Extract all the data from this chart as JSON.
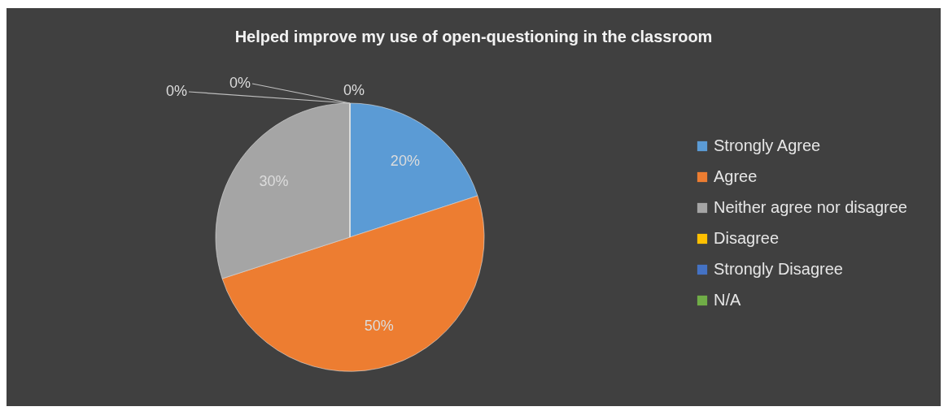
{
  "chart_data": {
    "type": "pie",
    "title": "Helped improve my use of open-questioning in the classroom",
    "categories": [
      "Strongly Agree",
      "Agree",
      "Neither agree nor disagree",
      "Disagree",
      "Strongly Disagree",
      "N/A"
    ],
    "values": [
      20,
      50,
      30,
      0,
      0,
      0
    ],
    "colors": [
      "#5b9bd5",
      "#ed7d31",
      "#a5a5a5",
      "#ffc000",
      "#4472c4",
      "#70ad47"
    ],
    "value_labels": [
      "20%",
      "50%",
      "30%",
      "0%",
      "0%",
      "0%"
    ],
    "legend": "right"
  }
}
